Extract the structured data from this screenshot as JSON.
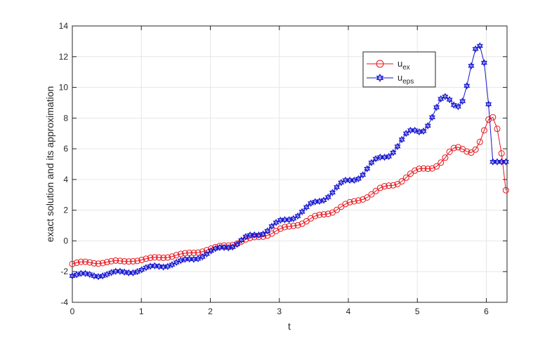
{
  "chart_data": {
    "type": "line",
    "title": "",
    "xlabel": "t",
    "ylabel": "exact solution and its approximation",
    "xlim": [
      0,
      6.3
    ],
    "ylim": [
      -4,
      14
    ],
    "xticks": [
      0,
      1,
      2,
      3,
      4,
      5,
      6
    ],
    "yticks": [
      -4,
      -2,
      0,
      2,
      4,
      6,
      8,
      10,
      12,
      14
    ],
    "grid": true,
    "legend_position": "top-right",
    "series": [
      {
        "name": "u",
        "subscript": "ex",
        "color": "#e8141b",
        "marker": "circle",
        "x": [
          0,
          0.0628,
          0.1257,
          0.1885,
          0.2513,
          0.3142,
          0.377,
          0.4398,
          0.5027,
          0.5655,
          0.6283,
          0.6912,
          0.754,
          0.8168,
          0.8796,
          0.9425,
          1.0053,
          1.0681,
          1.131,
          1.1938,
          1.2566,
          1.3195,
          1.3823,
          1.4451,
          1.508,
          1.5708,
          1.6336,
          1.6965,
          1.7593,
          1.8221,
          1.885,
          1.9478,
          2.0106,
          2.0735,
          2.1363,
          2.1991,
          2.2619,
          2.3248,
          2.3876,
          2.4504,
          2.5133,
          2.5761,
          2.6389,
          2.7018,
          2.7646,
          2.8274,
          2.8903,
          2.9531,
          3.0159,
          3.0788,
          3.1416,
          3.2044,
          3.2673,
          3.3301,
          3.3929,
          3.4558,
          3.5186,
          3.5814,
          3.6442,
          3.7071,
          3.7699,
          3.8327,
          3.8956,
          3.9584,
          4.0212,
          4.0841,
          4.1469,
          4.2097,
          4.2726,
          4.3354,
          4.3982,
          4.4611,
          4.5239,
          4.5867,
          4.6496,
          4.7124,
          4.7752,
          4.8381,
          4.9009,
          4.9637,
          5.0265,
          5.0894,
          5.1522,
          5.215,
          5.2779,
          5.3407,
          5.4035,
          5.4664,
          5.5292,
          5.592,
          5.6549,
          5.7177,
          5.7805,
          5.8434,
          5.9062,
          5.969,
          6.0319,
          6.0947,
          6.1575,
          6.2204,
          6.2832
        ],
        "values": [
          -1.5,
          -1.42,
          -1.36,
          -1.36,
          -1.4,
          -1.46,
          -1.48,
          -1.44,
          -1.38,
          -1.32,
          -1.28,
          -1.3,
          -1.33,
          -1.34,
          -1.33,
          -1.3,
          -1.24,
          -1.16,
          -1.1,
          -1.07,
          -1.08,
          -1.1,
          -1.08,
          -1.02,
          -0.93,
          -0.85,
          -0.8,
          -0.78,
          -0.78,
          -0.76,
          -0.7,
          -0.6,
          -0.5,
          -0.4,
          -0.33,
          -0.3,
          -0.3,
          -0.27,
          -0.18,
          -0.04,
          0.1,
          0.2,
          0.25,
          0.26,
          0.28,
          0.35,
          0.48,
          0.65,
          0.8,
          0.9,
          0.95,
          0.98,
          1.02,
          1.12,
          1.28,
          1.47,
          1.62,
          1.7,
          1.73,
          1.76,
          1.85,
          2.02,
          2.22,
          2.4,
          2.52,
          2.58,
          2.63,
          2.7,
          2.83,
          3.03,
          3.25,
          3.45,
          3.56,
          3.6,
          3.62,
          3.7,
          3.88,
          4.12,
          4.38,
          4.58,
          4.7,
          4.72,
          4.7,
          4.72,
          4.85,
          5.1,
          5.42,
          5.8,
          6.05,
          6.1,
          5.98,
          5.82,
          5.75,
          5.95,
          6.45,
          7.2,
          7.9,
          8.05,
          7.3,
          5.7,
          3.3
        ]
      },
      {
        "name": "u",
        "subscript": "eps",
        "color": "#1414d2",
        "marker": "hexagram",
        "x": [
          0,
          0.0628,
          0.1257,
          0.1885,
          0.2513,
          0.3142,
          0.377,
          0.4398,
          0.5027,
          0.5655,
          0.6283,
          0.6912,
          0.754,
          0.8168,
          0.8796,
          0.9425,
          1.0053,
          1.0681,
          1.131,
          1.1938,
          1.2566,
          1.3195,
          1.3823,
          1.4451,
          1.508,
          1.5708,
          1.6336,
          1.6965,
          1.7593,
          1.8221,
          1.885,
          1.9478,
          2.0106,
          2.0735,
          2.1363,
          2.1991,
          2.2619,
          2.3248,
          2.3876,
          2.4504,
          2.5133,
          2.5761,
          2.6389,
          2.7018,
          2.7646,
          2.8274,
          2.8903,
          2.9531,
          3.0159,
          3.0788,
          3.1416,
          3.2044,
          3.2673,
          3.3301,
          3.3929,
          3.4558,
          3.5186,
          3.5814,
          3.6442,
          3.7071,
          3.7699,
          3.8327,
          3.8956,
          3.9584,
          4.0212,
          4.0841,
          4.1469,
          4.2097,
          4.2726,
          4.3354,
          4.3982,
          4.4611,
          4.5239,
          4.5867,
          4.6496,
          4.7124,
          4.7752,
          4.8381,
          4.9009,
          4.9637,
          5.0265,
          5.0894,
          5.1522,
          5.215,
          5.2779,
          5.3407,
          5.4035,
          5.4664,
          5.5292,
          5.592,
          5.6549,
          5.7177,
          5.7805,
          5.8434,
          5.9062,
          5.969,
          6.0319,
          6.0947,
          6.1575,
          6.2204,
          6.2832
        ],
        "values": [
          -2.28,
          -2.2,
          -2.12,
          -2.12,
          -2.18,
          -2.28,
          -2.33,
          -2.28,
          -2.18,
          -2.06,
          -1.98,
          -1.98,
          -2.03,
          -2.08,
          -2.08,
          -2.0,
          -1.88,
          -1.74,
          -1.65,
          -1.62,
          -1.66,
          -1.7,
          -1.66,
          -1.55,
          -1.4,
          -1.28,
          -1.2,
          -1.18,
          -1.2,
          -1.16,
          -1.04,
          -0.85,
          -0.65,
          -0.5,
          -0.43,
          -0.43,
          -0.45,
          -0.4,
          -0.22,
          0.05,
          0.28,
          0.38,
          0.39,
          0.38,
          0.45,
          0.65,
          0.95,
          1.2,
          1.35,
          1.38,
          1.38,
          1.45,
          1.62,
          1.9,
          2.2,
          2.45,
          2.55,
          2.58,
          2.65,
          2.85,
          3.15,
          3.5,
          3.8,
          3.95,
          3.95,
          3.95,
          4.05,
          4.3,
          4.7,
          5.1,
          5.35,
          5.45,
          5.45,
          5.5,
          5.75,
          6.15,
          6.6,
          7.0,
          7.2,
          7.2,
          7.1,
          7.15,
          7.5,
          8.05,
          8.7,
          9.25,
          9.4,
          9.2,
          8.85,
          8.75,
          9.1,
          10.1,
          11.4,
          12.5,
          12.7,
          11.6,
          8.9,
          5.15,
          5.15,
          5.15,
          5.15
        ]
      }
    ]
  }
}
